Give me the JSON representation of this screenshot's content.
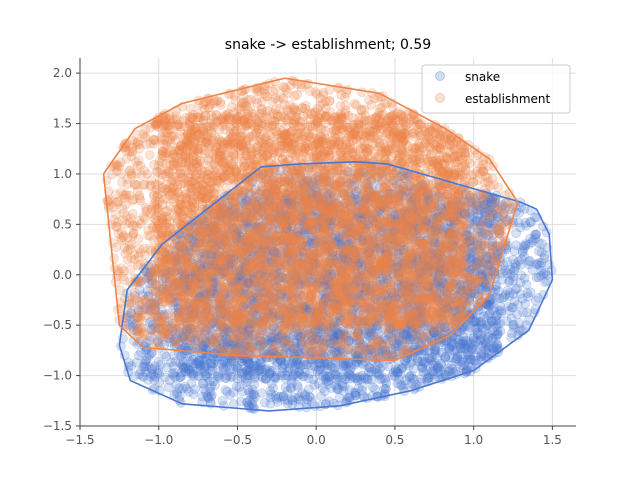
{
  "chart_data": {
    "type": "scatter",
    "title": "snake -> establishment; 0.59",
    "xlabel": "",
    "ylabel": "",
    "xlim": [
      -1.5,
      1.65
    ],
    "ylim": [
      -1.5,
      2.15
    ],
    "xticks": [
      -1.5,
      -1.0,
      -0.5,
      0.0,
      0.5,
      1.0,
      1.5
    ],
    "xtick_labels": [
      "−1.5",
      "−1.0",
      "−0.5",
      "0.0",
      "0.5",
      "1.0",
      "1.5"
    ],
    "yticks": [
      -1.5,
      -1.0,
      -0.5,
      0.0,
      0.5,
      1.0,
      1.5,
      2.0
    ],
    "ytick_labels": [
      "−1.5",
      "−1.0",
      "−0.5",
      "0.0",
      "0.5",
      "1.0",
      "1.5",
      "2.0"
    ],
    "grid": true,
    "legend_position": "top-right",
    "series": [
      {
        "name": "snake",
        "color": "#4878d0",
        "point_count": 4500,
        "hull": [
          [
            -1.25,
            -0.7
          ],
          [
            -1.18,
            -1.05
          ],
          [
            -0.85,
            -1.28
          ],
          [
            -0.3,
            -1.35
          ],
          [
            0.15,
            -1.3
          ],
          [
            0.6,
            -1.15
          ],
          [
            1.0,
            -0.95
          ],
          [
            1.35,
            -0.55
          ],
          [
            1.5,
            -0.05
          ],
          [
            1.48,
            0.4
          ],
          [
            1.4,
            0.65
          ],
          [
            1.3,
            0.72
          ],
          [
            0.45,
            1.1
          ],
          [
            0.25,
            1.12
          ],
          [
            -0.1,
            1.1
          ],
          [
            -0.35,
            1.07
          ],
          [
            -0.98,
            0.3
          ],
          [
            -1.2,
            -0.15
          ]
        ],
        "points": []
      },
      {
        "name": "establishment",
        "color": "#ee854a",
        "point_count": 5500,
        "hull": [
          [
            -1.35,
            1.0
          ],
          [
            -1.25,
            -0.5
          ],
          [
            -1.1,
            -0.72
          ],
          [
            -0.5,
            -0.8
          ],
          [
            0.5,
            -0.85
          ],
          [
            0.85,
            -0.6
          ],
          [
            1.1,
            -0.2
          ],
          [
            1.28,
            0.72
          ],
          [
            1.1,
            1.15
          ],
          [
            0.82,
            1.45
          ],
          [
            0.4,
            1.8
          ],
          [
            -0.2,
            1.95
          ],
          [
            -0.85,
            1.7
          ],
          [
            -1.15,
            1.45
          ]
        ],
        "points": []
      }
    ]
  }
}
